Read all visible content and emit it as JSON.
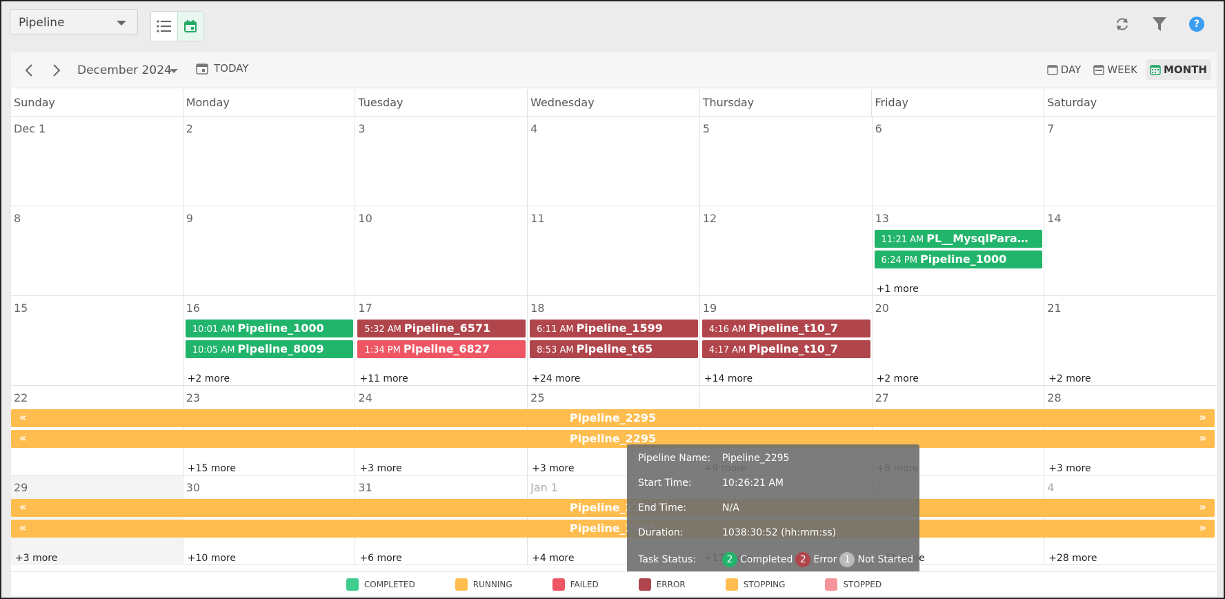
{
  "toolbar": {
    "pipeline_select": "Pipeline",
    "list_view_icon": "list-icon",
    "calendar_view_icon": "calendar-icon",
    "refresh_icon": "refresh-icon",
    "filter_icon": "filter-icon",
    "help_label": "?"
  },
  "calendar": {
    "month_label": "December 2024",
    "today_label": "TODAY",
    "day_label": "DAY",
    "week_label": "WEEK",
    "month_view_label": "MONTH",
    "weekdays": [
      "Sunday",
      "Monday",
      "Tuesday",
      "Wednesday",
      "Thursday",
      "Friday",
      "Saturday"
    ],
    "weeks": [
      {
        "days": [
          {
            "label": "Dec 1"
          },
          {
            "label": "2"
          },
          {
            "label": "3"
          },
          {
            "label": "4"
          },
          {
            "label": "5"
          },
          {
            "label": "6"
          },
          {
            "label": "7"
          }
        ]
      },
      {
        "days": [
          {
            "label": "8"
          },
          {
            "label": "9"
          },
          {
            "label": "10"
          },
          {
            "label": "11"
          },
          {
            "label": "12"
          },
          {
            "label": "13",
            "more": "+1 more",
            "events": [
              {
                "time": "11:21 AM",
                "name": "PL__MysqlParameter",
                "status": "completed"
              },
              {
                "time": "6:24 PM",
                "name": "Pipeline_1000",
                "status": "completed"
              }
            ]
          },
          {
            "label": "14"
          }
        ]
      },
      {
        "days": [
          {
            "label": "15"
          },
          {
            "label": "16",
            "more": "+2 more",
            "events": [
              {
                "time": "10:01 AM",
                "name": "Pipeline_1000",
                "status": "completed"
              },
              {
                "time": "10:05 AM",
                "name": "Pipeline_8009",
                "status": "completed"
              }
            ]
          },
          {
            "label": "17",
            "more": "+11 more",
            "events": [
              {
                "time": "5:32 AM",
                "name": "Pipeline_6571",
                "status": "error"
              },
              {
                "time": "1:34 PM",
                "name": "Pipeline_6827",
                "status": "failed"
              }
            ]
          },
          {
            "label": "18",
            "more": "+24 more",
            "events": [
              {
                "time": "6:11 AM",
                "name": "Pipeline_1599",
                "status": "error"
              },
              {
                "time": "8:53 AM",
                "name": "Pipeline_t65",
                "status": "error"
              }
            ]
          },
          {
            "label": "19",
            "more": "+14 more",
            "events": [
              {
                "time": "4:16 AM",
                "name": "Pipeline_t10_7",
                "status": "error"
              },
              {
                "time": "4:17 AM",
                "name": "Pipeline_t10_7",
                "status": "error"
              }
            ]
          },
          {
            "label": "20",
            "more": "+2 more"
          },
          {
            "label": "21",
            "more": "+2 more"
          }
        ]
      },
      {
        "days": [
          {
            "label": "22"
          },
          {
            "label": "23",
            "more": "+15 more"
          },
          {
            "label": "24",
            "more": "+3 more"
          },
          {
            "label": "25",
            "more": "+3 more"
          },
          {
            "label": ""
          },
          {
            "label": "27",
            "more": "+8 more"
          },
          {
            "label": "28",
            "more": "+3 more"
          }
        ],
        "spans": [
          {
            "name": "Pipeline_2295",
            "left": "«",
            "right": "»"
          },
          {
            "name": "Pipeline_2295",
            "left": "«",
            "right": "»"
          }
        ]
      },
      {
        "days": [
          {
            "label": "29",
            "more": "+3 more"
          },
          {
            "label": "30",
            "more": "+10 more"
          },
          {
            "label": "31",
            "more": "+6 more"
          },
          {
            "label": "Jan 1",
            "more": "+4 more"
          },
          {
            "label": "",
            "more": "+17 more"
          },
          {
            "label": "3",
            "more": "+61 more"
          },
          {
            "label": "4",
            "more": "+28 more"
          }
        ],
        "spans": [
          {
            "name": "Pipeline_2295",
            "left": "«",
            "right": "»"
          },
          {
            "name": "Pipeline_2295",
            "left": "«",
            "right": "»"
          }
        ]
      }
    ],
    "week4_thursday_more": "+9 more"
  },
  "tooltip": {
    "name_label": "Pipeline Name:",
    "name_value": "Pipeline_2295",
    "start_label": "Start Time:",
    "start_value": "10:26:21 AM",
    "end_label": "End Time:",
    "end_value": "N/A",
    "duration_label": "Duration:",
    "duration_value": "1038:30:52 (hh:mm:ss)",
    "status_label": "Task Status:",
    "completed_count": "2",
    "completed_label": "Completed",
    "error_count": "2",
    "error_label": "Error",
    "not_started_count": "1",
    "not_started_label": "Not Started"
  },
  "legend": [
    {
      "label": "COMPLETED",
      "color": "#3ecf8e"
    },
    {
      "label": "RUNNING",
      "color": "#ffbd4f"
    },
    {
      "label": "FAILED",
      "color": "#ef5664"
    },
    {
      "label": "ERROR",
      "color": "#b0454b"
    },
    {
      "label": "STOPPING",
      "color": "#ffbd4f"
    },
    {
      "label": "STOPPED",
      "color": "#f7949b"
    }
  ]
}
